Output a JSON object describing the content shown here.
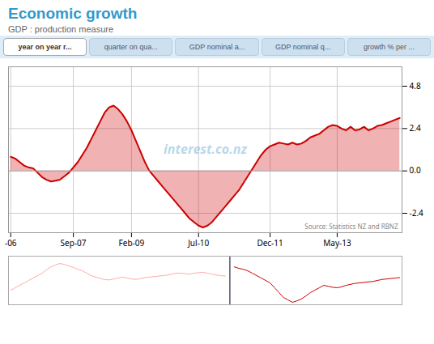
{
  "chart_data": [
    {
      "type": "area",
      "title": "Economic growth",
      "subtitle": "GDP : production measure",
      "tabs": [
        "year on year r...",
        "quarter on qua...",
        "GDP nominal a...",
        "GDP nominal q...",
        "growth % per ..."
      ],
      "annotations": [
        "interest.co.nz",
        "Source: Statistics NZ and RBNZ"
      ],
      "categories": [
        "-06",
        null,
        null,
        null,
        null,
        null,
        null,
        null,
        null,
        null,
        null,
        null,
        null,
        null,
        "Sep-07",
        null,
        null,
        null,
        null,
        null,
        null,
        null,
        null,
        null,
        null,
        null,
        null,
        "Feb-09",
        null,
        null,
        null,
        null,
        null,
        null,
        null,
        null,
        null,
        null,
        null,
        null,
        null,
        null,
        "Jul-10",
        null,
        null,
        null,
        null,
        null,
        null,
        null,
        null,
        null,
        null,
        null,
        null,
        null,
        null,
        null,
        "Dec-11",
        null,
        null,
        null,
        null,
        null,
        null,
        null,
        null,
        null,
        null,
        null,
        null,
        null,
        null,
        "May-13",
        null,
        null,
        null,
        null,
        null,
        null,
        null,
        null,
        null,
        null,
        null,
        null,
        null,
        null
      ],
      "values": [
        0.8,
        0.7,
        0.5,
        0.3,
        0.2,
        0.15,
        -0.1,
        -0.35,
        -0.5,
        -0.6,
        -0.55,
        -0.5,
        -0.3,
        -0.1,
        0.2,
        0.5,
        0.9,
        1.3,
        1.8,
        2.3,
        2.8,
        3.3,
        3.6,
        3.7,
        3.5,
        3.2,
        2.8,
        2.3,
        1.7,
        1.1,
        0.5,
        0.0,
        -0.3,
        -0.6,
        -0.9,
        -1.2,
        -1.5,
        -1.8,
        -2.1,
        -2.4,
        -2.7,
        -2.9,
        -3.1,
        -3.2,
        -3.1,
        -2.9,
        -2.6,
        -2.3,
        -2.0,
        -1.7,
        -1.4,
        -1.1,
        -0.7,
        -0.3,
        0.1,
        0.5,
        0.9,
        1.2,
        1.4,
        1.5,
        1.6,
        1.55,
        1.5,
        1.6,
        1.5,
        1.55,
        1.7,
        1.9,
        2.0,
        2.1,
        2.3,
        2.5,
        2.6,
        2.55,
        2.4,
        2.3,
        2.5,
        2.3,
        2.35,
        2.5,
        2.3,
        2.4,
        2.55,
        2.6,
        2.7,
        2.8,
        2.9,
        3.0
      ],
      "color": "#cc0000",
      "ylim": [
        -3.5,
        5.9
      ],
      "yticks": [
        -2.4,
        {
          "value": 0,
          "label": "0.0"
        },
        2.4,
        4.8
      ],
      "grid": true
    },
    {
      "type": "line",
      "categories": [
        "-06",
        null,
        null,
        null,
        null,
        null,
        null,
        null,
        null,
        null,
        null,
        null,
        null,
        null,
        "Sep-07",
        null,
        null,
        null,
        null,
        null,
        null,
        null,
        null,
        null,
        null,
        null,
        null,
        "Feb-09",
        null,
        null,
        null,
        null,
        null,
        null,
        null,
        null,
        null,
        null,
        null,
        null,
        null,
        null,
        "Jul-10",
        null,
        null,
        null,
        null,
        null,
        null,
        null,
        null,
        null,
        null,
        null,
        null,
        null,
        null,
        null,
        "Dec-11",
        null,
        null,
        null,
        null,
        null,
        null,
        null,
        null,
        null,
        null,
        null,
        null,
        null,
        null,
        "May-13",
        null,
        null,
        null,
        null,
        null,
        null,
        null,
        null,
        null,
        null,
        null,
        null,
        null,
        null
      ],
      "series": [
        {
          "color": "#ffaaaa",
          "values": [
            0.3,
            0.35,
            0.4,
            0.45,
            0.5,
            0.55,
            0.6,
            0.65,
            0.72,
            0.78,
            0.82,
            0.85,
            0.83,
            0.8,
            0.77,
            0.73,
            0.7,
            0.65,
            0.6,
            0.57,
            0.54,
            0.52,
            0.51,
            0.53,
            0.55,
            0.57,
            0.55,
            0.53,
            0.52,
            0.54,
            0.56,
            0.57,
            0.58,
            0.59,
            0.6,
            0.61,
            0.63,
            0.65,
            0.65,
            0.64,
            0.63,
            0.65,
            0.66,
            0.67,
            0.65,
            0.63,
            0.61,
            0.6,
            0.59,
            null,
            null,
            null,
            null,
            null,
            null,
            null,
            null,
            null,
            null,
            null,
            null,
            null,
            null,
            null,
            null,
            null,
            null,
            null,
            null,
            null,
            null,
            null,
            null,
            null,
            null,
            null,
            null,
            null,
            null,
            null,
            null,
            null,
            null,
            null,
            null,
            null,
            null,
            null
          ]
        },
        {
          "color": "#cc0000",
          "values": [
            null,
            null,
            null,
            null,
            null,
            null,
            null,
            null,
            null,
            null,
            null,
            null,
            null,
            null,
            null,
            null,
            null,
            null,
            null,
            null,
            null,
            null,
            null,
            null,
            null,
            null,
            null,
            null,
            null,
            null,
            null,
            null,
            null,
            null,
            null,
            null,
            null,
            null,
            null,
            null,
            null,
            null,
            null,
            null,
            null,
            null,
            null,
            null,
            null,
            null,
            0.78,
            0.75,
            0.73,
            0.7,
            0.65,
            0.6,
            0.55,
            0.5,
            0.45,
            0.35,
            0.25,
            0.15,
            0.1,
            0.05,
            0.08,
            0.12,
            0.18,
            0.25,
            0.3,
            0.35,
            0.4,
            0.38,
            0.36,
            0.35,
            0.37,
            0.4,
            0.42,
            0.44,
            0.45,
            0.46,
            0.47,
            0.48,
            0.5,
            0.52,
            0.53,
            0.54,
            0.55,
            0.56
          ]
        }
      ],
      "divider": 49,
      "ylim": [
        0,
        1
      ],
      "tick_labels": false
    }
  ]
}
